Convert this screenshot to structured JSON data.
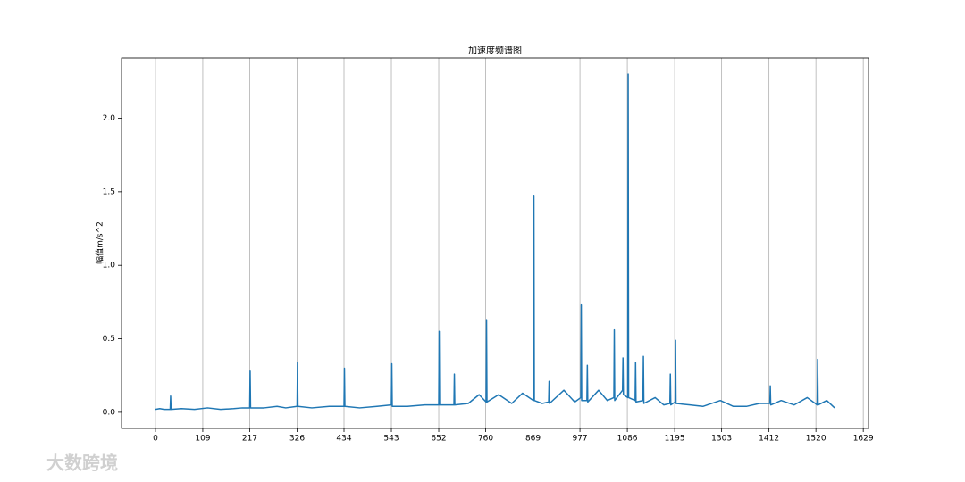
{
  "chart_data": {
    "type": "line",
    "title": "加速度频谱图",
    "y_label": "幅值m/s^2",
    "watermark": "大数跨境",
    "x": [
      0,
      10,
      20,
      34,
      35,
      36,
      60,
      90,
      120,
      150,
      180,
      200,
      217,
      218,
      219,
      250,
      280,
      300,
      326,
      327,
      328,
      360,
      400,
      434,
      435,
      436,
      470,
      510,
      543,
      544,
      545,
      580,
      620,
      652,
      653,
      654,
      687,
      688,
      689,
      720,
      745,
      761,
      762,
      763,
      790,
      820,
      845,
      870,
      871,
      872,
      890,
      905,
      906,
      907,
      940,
      965,
      979,
      980,
      981,
      993,
      994,
      995,
      1020,
      1040,
      1055,
      1056,
      1057,
      1075,
      1076,
      1077,
      1087,
      1088,
      1089,
      1104,
      1105,
      1106,
      1122,
      1123,
      1124,
      1150,
      1170,
      1184,
      1185,
      1186,
      1196,
      1197,
      1198,
      1230,
      1260,
      1300,
      1330,
      1360,
      1390,
      1414,
      1415,
      1416,
      1440,
      1470,
      1500,
      1523,
      1524,
      1525,
      1545,
      1563
    ],
    "series": [
      {
        "name": "幅值",
        "color": "#1f77b4",
        "values": [
          0.02,
          0.025,
          0.02,
          0.02,
          0.11,
          0.02,
          0.025,
          0.02,
          0.03,
          0.02,
          0.025,
          0.03,
          0.03,
          0.28,
          0.03,
          0.03,
          0.04,
          0.03,
          0.04,
          0.34,
          0.04,
          0.03,
          0.04,
          0.04,
          0.3,
          0.04,
          0.03,
          0.04,
          0.05,
          0.33,
          0.04,
          0.04,
          0.05,
          0.05,
          0.55,
          0.05,
          0.05,
          0.26,
          0.05,
          0.06,
          0.12,
          0.07,
          0.63,
          0.07,
          0.12,
          0.06,
          0.13,
          0.08,
          1.47,
          0.08,
          0.06,
          0.07,
          0.21,
          0.06,
          0.15,
          0.07,
          0.1,
          0.73,
          0.08,
          0.08,
          0.32,
          0.07,
          0.15,
          0.08,
          0.1,
          0.56,
          0.08,
          0.15,
          0.37,
          0.12,
          0.1,
          2.3,
          0.1,
          0.08,
          0.34,
          0.07,
          0.08,
          0.38,
          0.06,
          0.1,
          0.05,
          0.06,
          0.26,
          0.05,
          0.07,
          0.49,
          0.06,
          0.05,
          0.04,
          0.08,
          0.04,
          0.04,
          0.06,
          0.06,
          0.18,
          0.05,
          0.08,
          0.05,
          0.1,
          0.05,
          0.36,
          0.05,
          0.08,
          0.03
        ]
      }
    ],
    "xlim": [
      -78,
      1641
    ],
    "ylim": [
      -0.11,
      2.41
    ],
    "xticks": [
      0,
      109,
      217,
      326,
      434,
      543,
      652,
      760,
      869,
      977,
      1086,
      1195,
      1303,
      1412,
      1520,
      1629
    ],
    "yticks": [
      {
        "value": 0,
        "label": "0.0"
      },
      {
        "value": 0.5,
        "label": "0.5"
      },
      {
        "value": 1,
        "label": "1.0"
      },
      {
        "value": 1.5,
        "label": "1.5"
      },
      {
        "value": 2,
        "label": "2.0"
      }
    ],
    "grid": "x"
  }
}
